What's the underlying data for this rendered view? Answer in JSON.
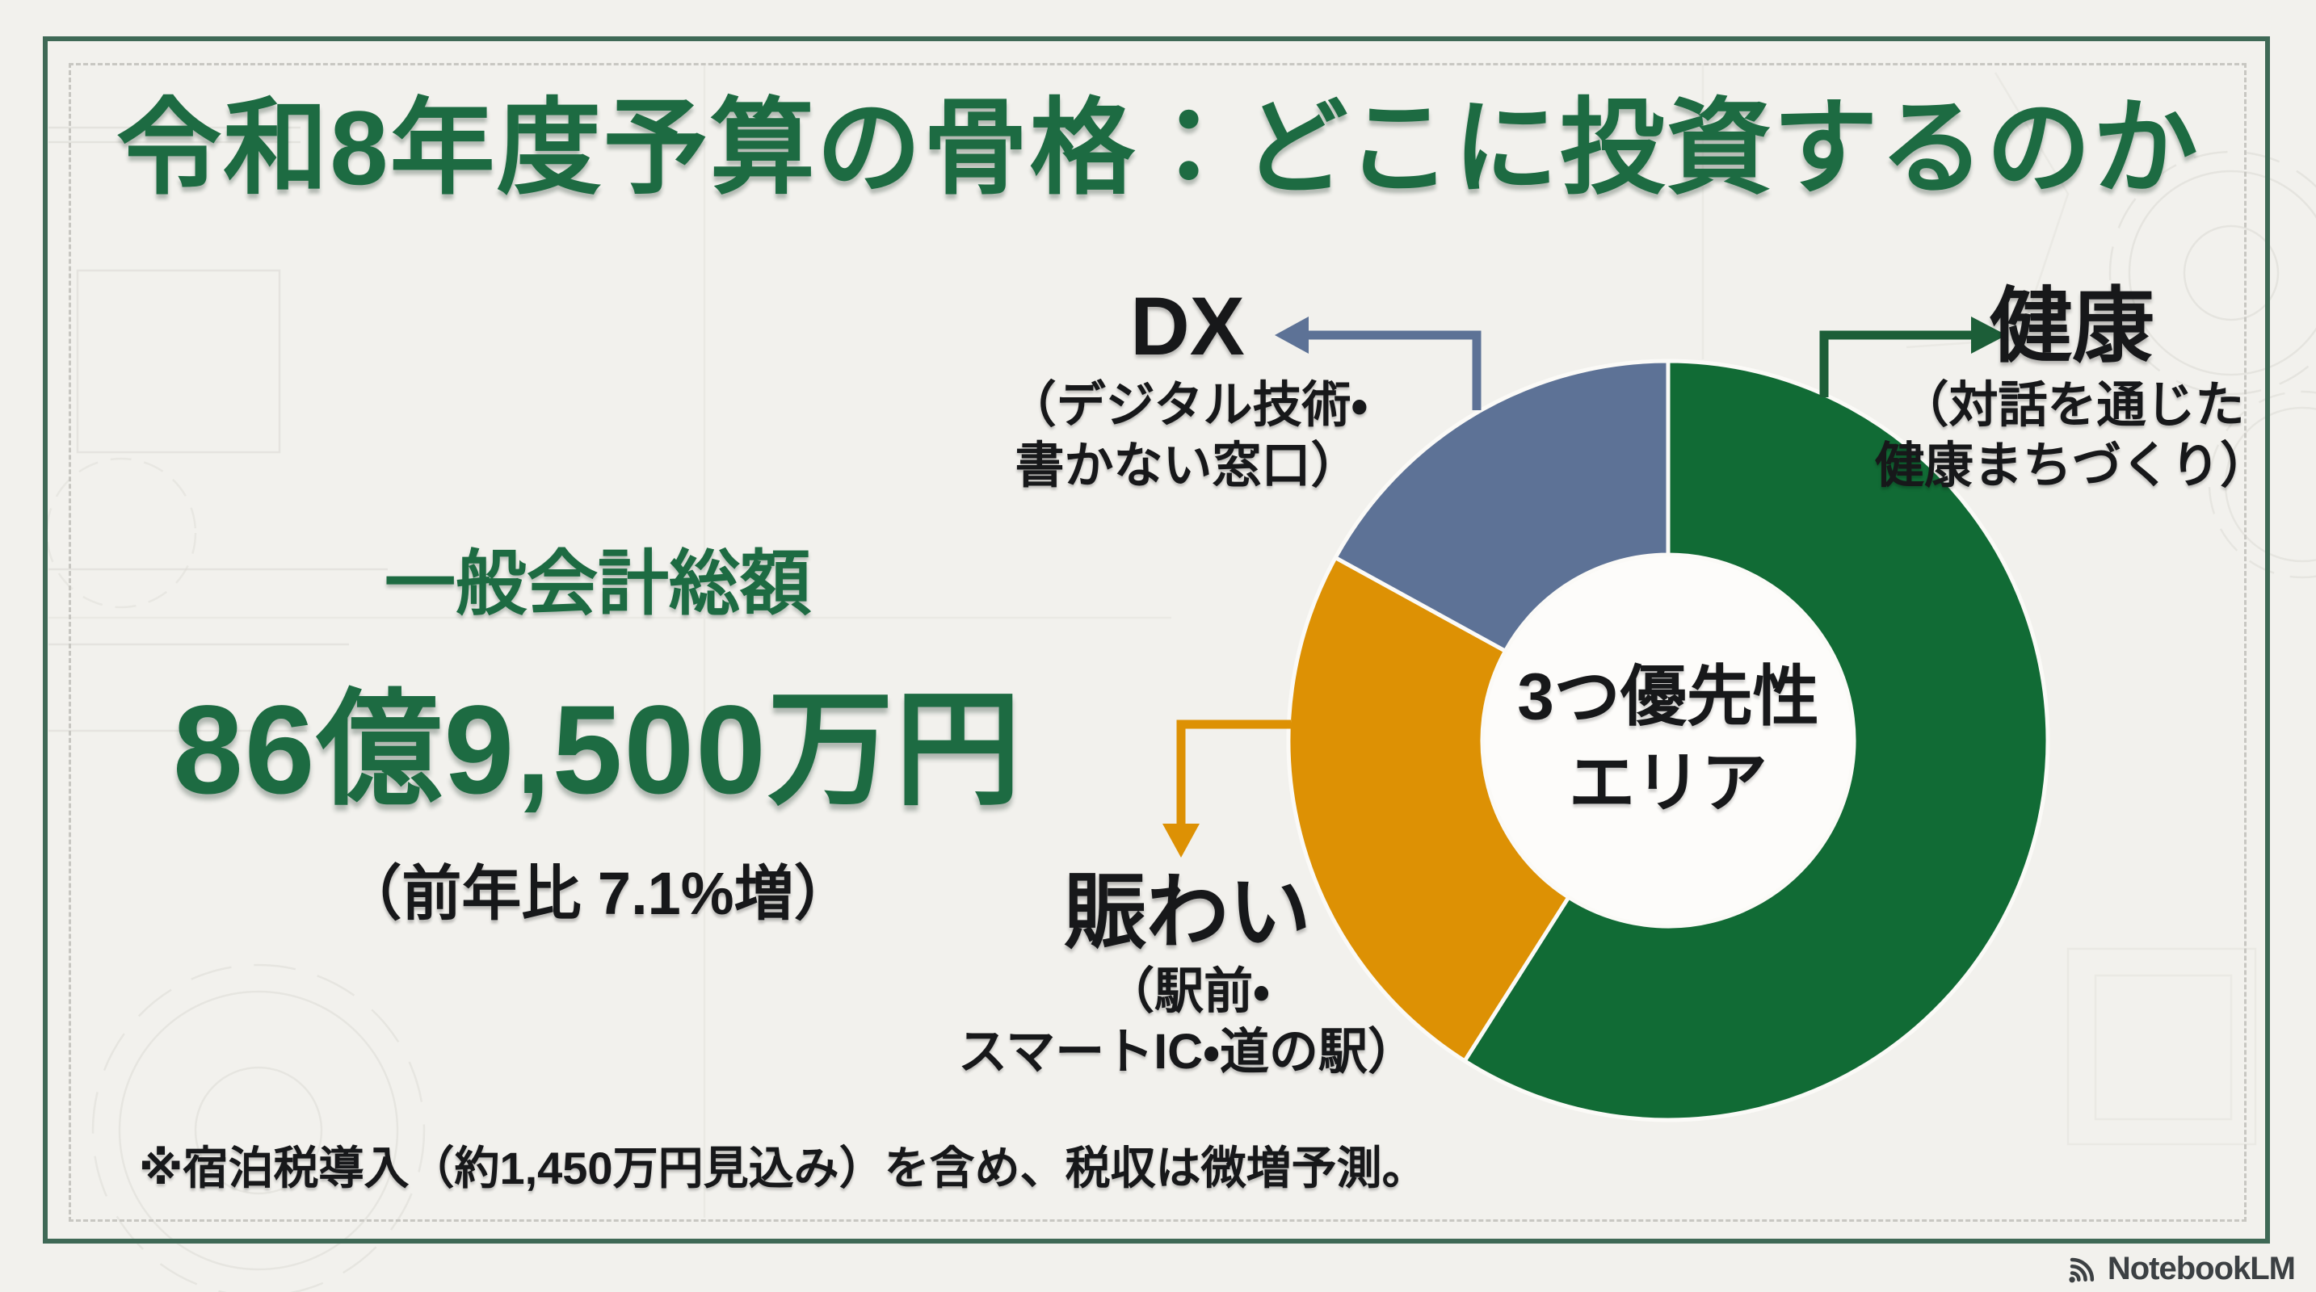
{
  "page": {
    "title": "令和8年度予算の骨格：どこに投資するのか"
  },
  "summary": {
    "label": "一般会計総額",
    "amount": "86億9,500万円",
    "yoy": "（前年比 7.1%増）"
  },
  "chart_data": {
    "type": "donut",
    "title": "3つ優先性エリア",
    "center_label_lines": [
      "3つ優先性",
      "エリア"
    ],
    "start_angle": "top",
    "direction": "clockwise",
    "total_label": "一般会計総額 86億9,500万円",
    "segments": [
      {
        "id": "kenko",
        "label": "健康",
        "sublabel_lines": [
          "（対話を通じた",
          "健康まちづくり）"
        ],
        "value_pct": 59,
        "color": "#116b35"
      },
      {
        "id": "nigiwai",
        "label": "賑わい",
        "sublabel_lines": [
          "（駅前・",
          "スマートIC・道の駅）"
        ],
        "value_pct": 24,
        "color": "#dd9104"
      },
      {
        "id": "dx",
        "label": "DX",
        "sublabel_lines": [
          "（デジタル技術・",
          "書かない窓口）"
        ],
        "value_pct": 17,
        "color": "#5d7296"
      }
    ]
  },
  "note": "※宿泊税導入（約1,450万円見込み）を含め、税収は微増予測。",
  "branding": {
    "logo_text": "NotebookLM"
  },
  "theme": {
    "bg": "#f2f1ed",
    "frame_green": "#3f6956",
    "dashed_gray": "#c8c7c2",
    "title_green": "#1d6b42",
    "text_black": "#17181a",
    "seg_kenko": "#116b35",
    "seg_nigiwai": "#dd9104",
    "seg_dx": "#5d7296",
    "arrow_green": "#1c5e38",
    "donut_hole": "#fdfcfa",
    "donut_gap": "#fbfaf7",
    "logo_gray": "#3c4043"
  }
}
